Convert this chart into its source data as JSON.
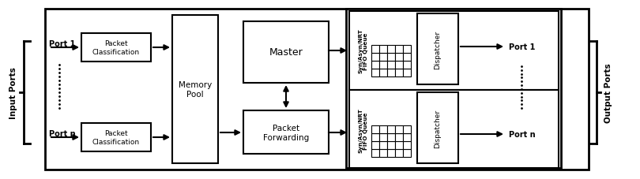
{
  "fig_width": 8.1,
  "fig_height": 2.28,
  "dpi": 100,
  "bg_color": "#ffffff",
  "input_ports_label": "Input Ports",
  "output_ports_label": "Output Ports",
  "port1_in_label": "Port 1",
  "portn_in_label": "Port n",
  "port1_out_label": "Port 1",
  "portn_out_label": "Port n",
  "packet_class_label": "Packet\nClassification",
  "memory_pool_label": "Memory\nPool",
  "master_label": "Master",
  "packet_fwd_label": "Packet\nForwarding",
  "fifo_top_label": "Syn/Asyn/NRT\nFIFO Queue",
  "fifo_bot_label": "Syn/Asyn/NRT\nFIFO Queue",
  "dispatcher_top_label": "Dispatcher",
  "dispatcher_bot_label": "Dispatcher"
}
